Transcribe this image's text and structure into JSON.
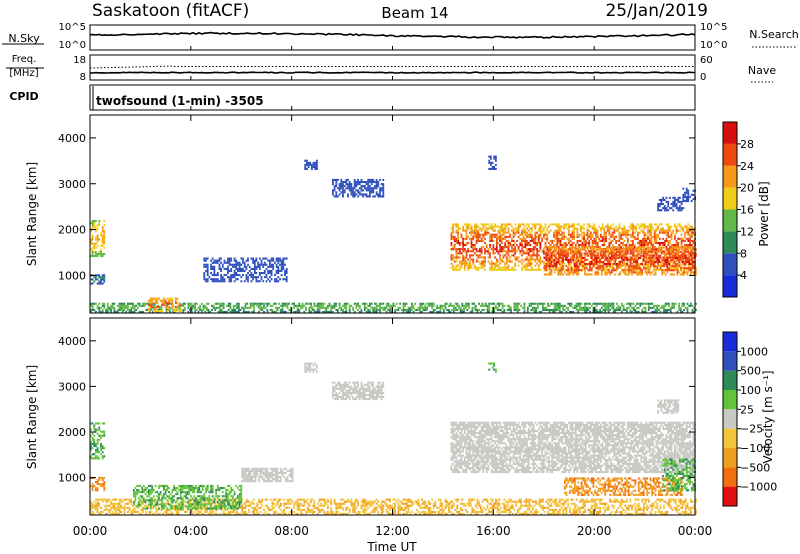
{
  "header": {
    "site": "Saskatoon (fitACF)",
    "beam": "Beam 14",
    "date": "25/Jan/2019"
  },
  "top_panels": {
    "nsky": {
      "label": "N.Sky",
      "tick_top": "10^5",
      "tick_bottom": "10^0"
    },
    "nsearch": {
      "label": "N.Search",
      "tick_top": "10^5",
      "tick_bottom": "10^0"
    },
    "freq": {
      "label_line1": "Freq.",
      "label_line2": "[MHz]",
      "tick_top": "18",
      "tick_bottom": "8"
    },
    "nave": {
      "label": "Nave",
      "tick_top": "60",
      "tick_bottom": "0"
    },
    "cpid": {
      "label": "CPID",
      "value": "twofsound (1-min) -3505"
    }
  },
  "colors": {
    "power": [
      "#1a2bd9",
      "#2f4fbf",
      "#2e8b57",
      "#62b848",
      "#f0cc16",
      "#f59a17",
      "#f04a12",
      "#d80e0e"
    ],
    "velocity": [
      "#e01010",
      "#f07010",
      "#f0a020",
      "#f3c33a",
      "#c8c8c4",
      "#62c43a",
      "#2e8b57",
      "#2f4fbf",
      "#1a2bd9"
    ],
    "ground_scatter": "#c8c8c4"
  },
  "chart_data": [
    {
      "type": "heatmap",
      "name": "power",
      "xlabel": "",
      "ylabel": "Slant Range [km]",
      "x_ticks": [
        "00:00",
        "04:00",
        "08:00",
        "12:00",
        "16:00",
        "20:00",
        "00:00"
      ],
      "x_range_hours": [
        0,
        24
      ],
      "y_ticks": [
        "1000",
        "2000",
        "3000",
        "4000"
      ],
      "y_tick_values": [
        1000,
        2000,
        3000,
        4000
      ],
      "ylim": [
        180,
        4500
      ],
      "colorbar": {
        "label": "Power [dB]",
        "range": [
          0,
          32
        ],
        "ticks": [
          "4",
          "8",
          "12",
          "16",
          "20",
          "24",
          "28"
        ],
        "tick_values": [
          4,
          8,
          12,
          16,
          20,
          24,
          28
        ]
      },
      "regions": [
        {
          "t0": 14.3,
          "t1": 24.0,
          "r0": 1100,
          "r1": 2100,
          "v0": 10,
          "v1": 30
        },
        {
          "t0": 18.0,
          "t1": 24.0,
          "r0": 1000,
          "r1": 1600,
          "v0": 16,
          "v1": 30
        },
        {
          "t0": 0.0,
          "t1": 24.0,
          "r0": 180,
          "r1": 400,
          "v0": 4,
          "v1": 16
        },
        {
          "t0": 2.3,
          "t1": 3.6,
          "r0": 200,
          "r1": 500,
          "v0": 14,
          "v1": 26
        },
        {
          "t0": 0.0,
          "t1": 0.6,
          "r0": 1400,
          "r1": 2200,
          "v0": 8,
          "v1": 24
        },
        {
          "t0": 0.0,
          "t1": 0.6,
          "r0": 800,
          "r1": 1000,
          "v0": 4,
          "v1": 10
        },
        {
          "t0": 4.5,
          "t1": 7.8,
          "r0": 850,
          "r1": 1350,
          "v0": 4,
          "v1": 8
        },
        {
          "t0": 8.5,
          "t1": 9.0,
          "r0": 3300,
          "r1": 3500,
          "v0": 4,
          "v1": 8
        },
        {
          "t0": 15.8,
          "t1": 16.1,
          "r0": 3300,
          "r1": 3600,
          "v0": 4,
          "v1": 8
        },
        {
          "t0": 9.6,
          "t1": 11.6,
          "r0": 2700,
          "r1": 3100,
          "v0": 4,
          "v1": 8
        },
        {
          "t0": 22.5,
          "t1": 23.5,
          "r0": 2400,
          "r1": 2700,
          "v0": 4,
          "v1": 8
        },
        {
          "t0": 23.5,
          "t1": 24.0,
          "r0": 2600,
          "r1": 2900,
          "v0": 4,
          "v1": 8
        }
      ]
    },
    {
      "type": "heatmap",
      "name": "velocity",
      "xlabel": "Time UT",
      "ylabel": "Slant Range [km]",
      "x_ticks": [
        "00:00",
        "04:00",
        "08:00",
        "12:00",
        "16:00",
        "20:00",
        "00:00"
      ],
      "x_range_hours": [
        0,
        24
      ],
      "y_ticks": [
        "1000",
        "2000",
        "3000",
        "4000"
      ],
      "y_tick_values": [
        1000,
        2000,
        3000,
        4000
      ],
      "ylim": [
        180,
        4500
      ],
      "colorbar": {
        "label": "Velocity [m s⁻¹]",
        "ticks": [
          "1000",
          "500",
          "100",
          "25",
          "−25",
          "−100",
          "−500",
          "−1000"
        ],
        "tick_values": [
          1000,
          500,
          100,
          25,
          -25,
          -100,
          -500,
          -1000
        ]
      },
      "regions": [
        {
          "t0": 14.3,
          "t1": 24.0,
          "r0": 1100,
          "r1": 2200,
          "cls": "ground"
        },
        {
          "t0": 0.0,
          "t1": 24.0,
          "r0": 180,
          "r1": 500,
          "cls": "low_neg"
        },
        {
          "t0": 1.7,
          "t1": 6.0,
          "r0": 300,
          "r1": 800,
          "cls": "pos_green"
        },
        {
          "t0": 18.8,
          "t1": 23.5,
          "r0": 600,
          "r1": 1000,
          "cls": "neg_orange"
        },
        {
          "t0": 22.7,
          "t1": 24.0,
          "r0": 700,
          "r1": 1400,
          "cls": "pos_green"
        },
        {
          "t0": 6.0,
          "t1": 8.0,
          "r0": 900,
          "r1": 1200,
          "cls": "ground"
        },
        {
          "t0": 8.5,
          "t1": 9.0,
          "r0": 3300,
          "r1": 3500,
          "cls": "ground"
        },
        {
          "t0": 9.6,
          "t1": 11.6,
          "r0": 2700,
          "r1": 3100,
          "cls": "ground"
        },
        {
          "t0": 15.8,
          "t1": 16.1,
          "r0": 3300,
          "r1": 3500,
          "cls": "pos_green"
        },
        {
          "t0": 22.5,
          "t1": 23.3,
          "r0": 2400,
          "r1": 2700,
          "cls": "ground"
        },
        {
          "t0": 0.0,
          "t1": 0.6,
          "r0": 1400,
          "r1": 2200,
          "cls": "pos_green"
        },
        {
          "t0": 0.0,
          "t1": 0.6,
          "r0": 700,
          "r1": 1000,
          "cls": "neg_orange"
        }
      ]
    }
  ]
}
